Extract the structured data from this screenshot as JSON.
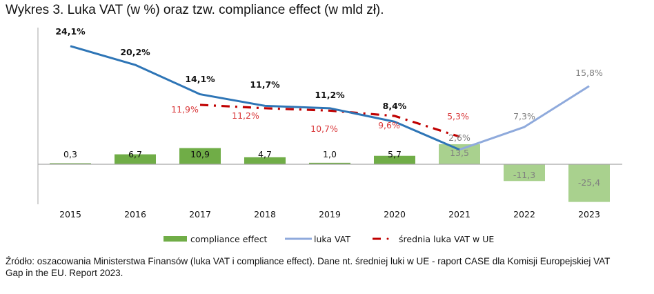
{
  "title": "Wykres 3. Luka VAT (w %) oraz tzw. compliance effect (w mld zł).",
  "source": "Źródło: oszacowania Ministerstwa Finansów (luka VAT i compliance effect). Dane nt. średniej luki w UE - raport CASE dla Komisji Europejskiej VAT Gap in the EU. Report 2023.",
  "colors": {
    "bar_actual": "#70ad47",
    "bar_forecast": "#a9d18e",
    "vat_gap_actual": "#2e75b6",
    "vat_gap_forecast": "#8faadc",
    "eu_average": "#c00000",
    "label_black": "#111111",
    "label_grey": "#7f7f7f",
    "label_red": "#d9383a",
    "axis": "#a6a6a6"
  },
  "chart_data": {
    "type": "bar+line",
    "title": "Wykres 3. Luka VAT (w %) oraz tzw. compliance effect (w mld zł).",
    "categories": [
      "2015",
      "2016",
      "2017",
      "2018",
      "2019",
      "2020",
      "2021",
      "2022",
      "2023"
    ],
    "series": [
      {
        "name": "compliance effect",
        "type": "bar",
        "unit": "mld zł",
        "values": [
          0.3,
          6.7,
          10.9,
          4.7,
          1.0,
          5.7,
          13.5,
          -11.3,
          -25.4
        ],
        "labels": [
          "0,3",
          "6,7",
          "10,9",
          "4,7",
          "1,0",
          "5,7",
          "13,5",
          "-11,3",
          "-25,4"
        ],
        "forecast_from_index": 6
      },
      {
        "name": "luka VAT",
        "type": "line",
        "unit": "%",
        "values": [
          24.1,
          20.2,
          14.1,
          11.7,
          11.2,
          8.4,
          2.6,
          7.3,
          15.8
        ],
        "labels": [
          "24,1%",
          "20,2%",
          "14,1%",
          "11,7%",
          "11,2%",
          "8,4%",
          "2,6%",
          "7,3%",
          "15,8%"
        ],
        "forecast_from_index": 6
      },
      {
        "name": "średnia luka VAT w UE",
        "type": "line",
        "style": "dash-dot",
        "unit": "%",
        "values": [
          null,
          null,
          11.9,
          11.2,
          10.7,
          9.6,
          5.3,
          null,
          null
        ],
        "labels": [
          null,
          null,
          "11,9%",
          "11,2%",
          "10,7%",
          "9,6%",
          "5,3%",
          null,
          null
        ]
      }
    ],
    "xlabel": "",
    "ylabel": "",
    "grid": false,
    "legend": "bottom",
    "legend_entries": [
      "compliance effect",
      "luka VAT",
      "średnia luka VAT w UE"
    ]
  }
}
